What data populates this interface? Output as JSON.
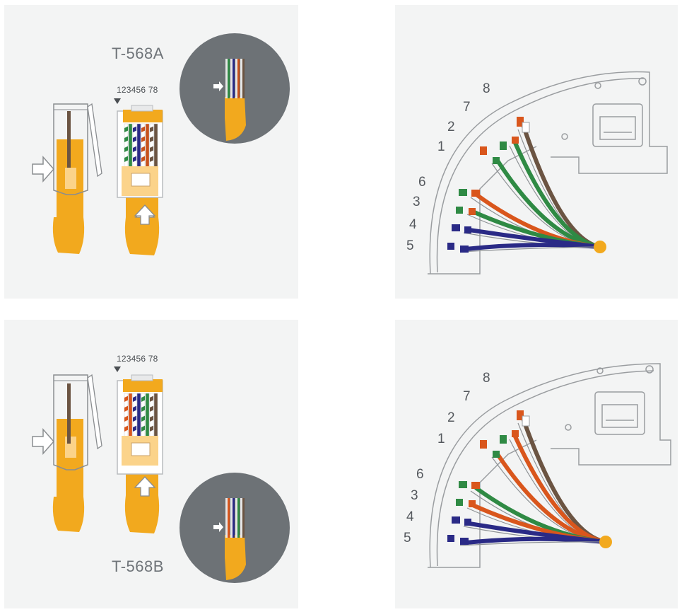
{
  "t568a": {
    "title": "T-568A",
    "pin_numbers": "123456 78",
    "plug_wires": [
      "#ffffff",
      "#2f8a44",
      "#ffffff",
      "#2a2a86",
      "#ffffff",
      "#c8511c",
      "#ffffff",
      "#6b5442"
    ],
    "jack_pin_labels": {
      "p8": "8",
      "p7": "7",
      "p2": "2",
      "p1": "1",
      "p6": "6",
      "p3": "3",
      "p4": "4",
      "p5": "5"
    }
  },
  "t568b": {
    "title": "T-568B",
    "pin_numbers": "123456 78",
    "plug_wires": [
      "#ffffff",
      "#d9561c",
      "#ffffff",
      "#2a2a86",
      "#ffffff",
      "#2f8a44",
      "#ffffff",
      "#6b5442"
    ],
    "jack_pin_labels": {
      "p8": "8",
      "p7": "7",
      "p2": "2",
      "p1": "1",
      "p6": "6",
      "p3": "3",
      "p4": "4",
      "p5": "5"
    }
  },
  "colors": {
    "background": "#f3f4f4",
    "cable_orange": "#f2a91e",
    "circle_gray": "#6d7276",
    "wire_orange": "#d9561c",
    "wire_green": "#2f8a44",
    "wire_blue": "#2a2a86",
    "wire_brown": "#6b5442"
  },
  "icons": [
    "arrow-right-icon",
    "arrow-up-icon",
    "pin-marker-icon"
  ]
}
